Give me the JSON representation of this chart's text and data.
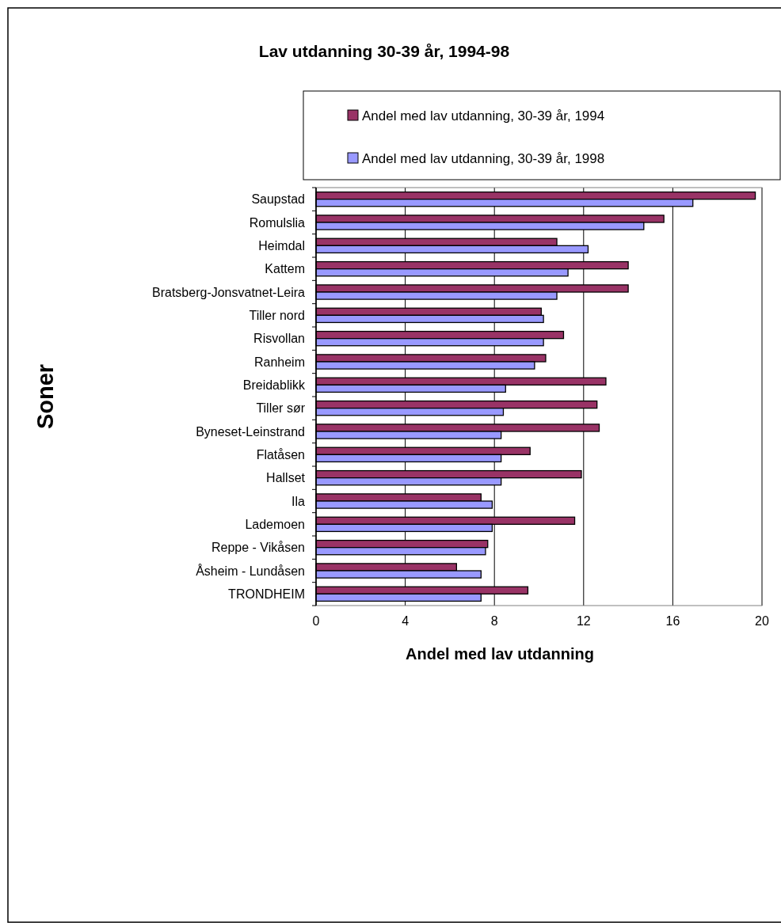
{
  "chart_data": {
    "type": "bar",
    "orientation": "horizontal",
    "title": "Lav utdanning 30-39 år, 1994-98",
    "xlabel": "Andel med lav utdanning",
    "ylabel": "Soner",
    "categories": [
      "Saupstad",
      "Romulslia",
      "Heimdal",
      "Kattem",
      "Bratsberg-Jonsvatnet-Leira",
      "Tiller nord",
      "Risvollan",
      "Ranheim",
      "Breidablikk",
      "Tiller sør",
      "Byneset-Leinstrand",
      "Flatåsen",
      "Hallset",
      "Ila",
      "Lademoen",
      "Reppe - Vikåsen",
      "Åsheim - Lundåsen",
      "TRONDHEIM"
    ],
    "series": [
      {
        "name": "Andel med lav utdanning, 30-39 år, 1994",
        "color": "#993366",
        "values": [
          19.7,
          15.6,
          10.8,
          14.0,
          14.0,
          10.1,
          11.1,
          10.3,
          13.0,
          12.6,
          12.7,
          9.6,
          11.9,
          7.4,
          11.6,
          7.7,
          6.3,
          9.5
        ]
      },
      {
        "name": "Andel med lav utdanning, 30-39 år, 1998",
        "color": "#9999ff",
        "values": [
          16.9,
          14.7,
          12.2,
          11.3,
          10.8,
          10.2,
          10.2,
          9.8,
          8.5,
          8.4,
          8.3,
          8.3,
          8.3,
          7.9,
          7.9,
          7.6,
          7.4,
          7.4
        ]
      }
    ],
    "xlim": [
      0,
      20
    ],
    "xticks": [
      0,
      4,
      8,
      12,
      16,
      20
    ],
    "grid": "x",
    "legend": "top"
  }
}
